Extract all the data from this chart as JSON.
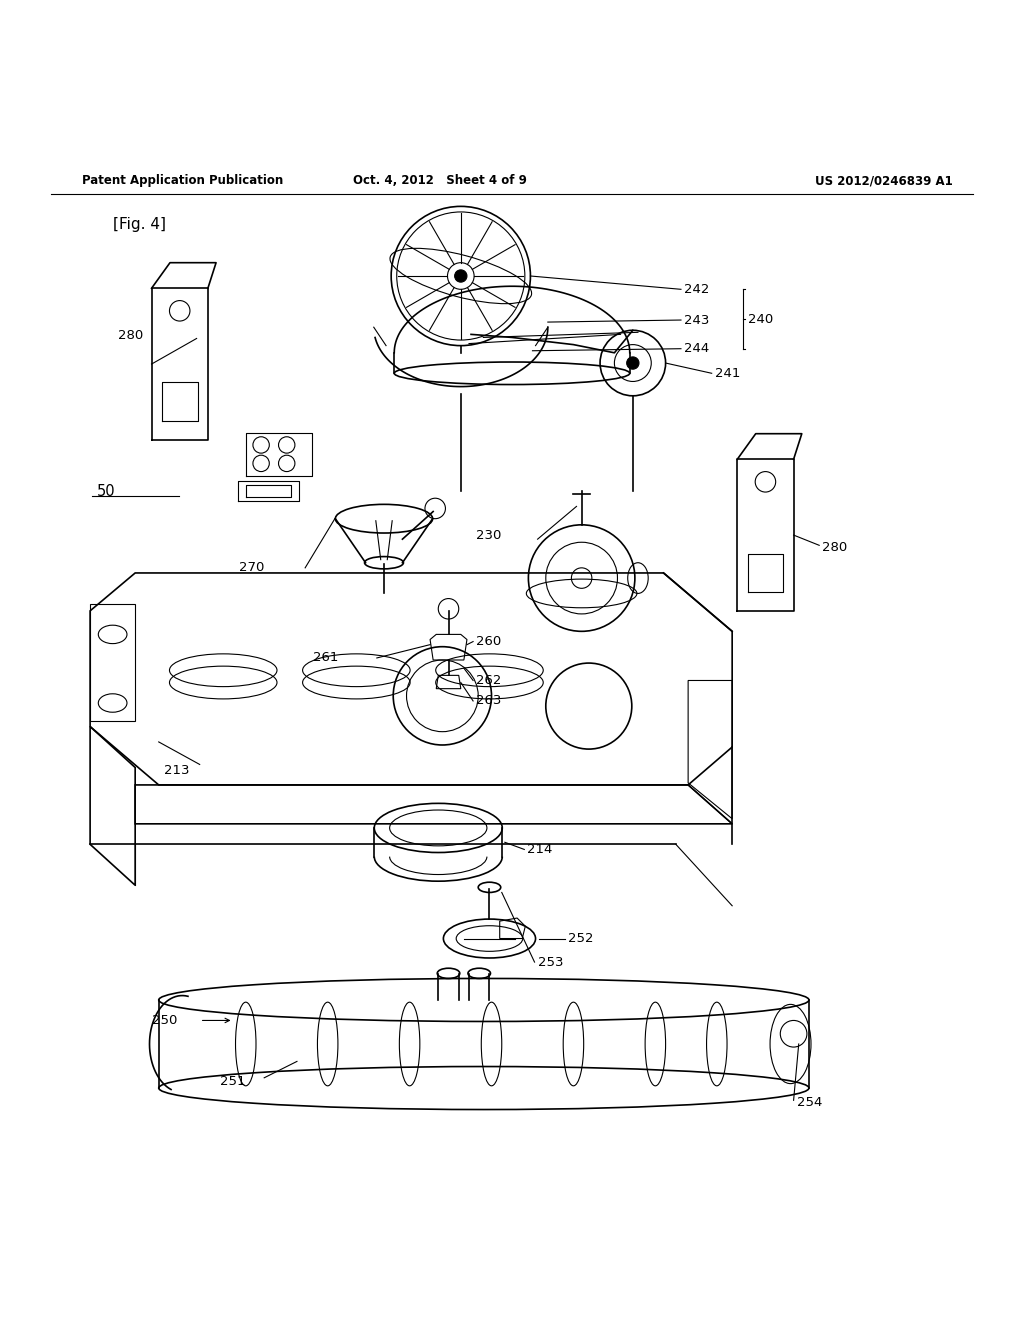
{
  "header_left": "Patent Application Publication",
  "header_mid": "Oct. 4, 2012   Sheet 4 of 9",
  "header_right": "US 2012/0246839 A1",
  "fig_label": "[Fig. 4]",
  "background": "#ffffff",
  "line_color": "#000000",
  "text_color": "#000000"
}
